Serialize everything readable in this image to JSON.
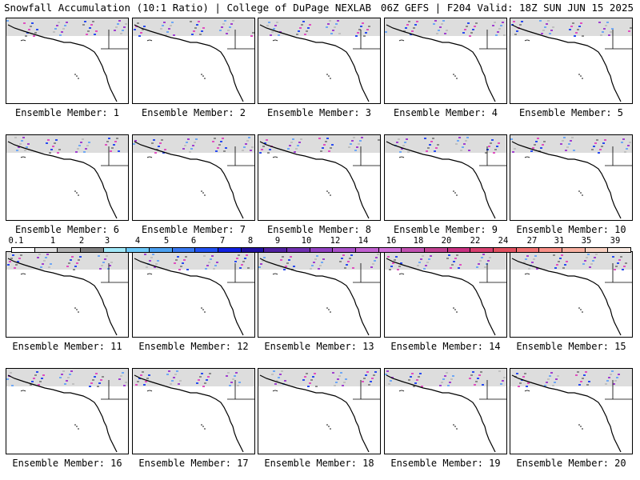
{
  "header": {
    "title_left": "Snowfall Accumulation (10:1 Ratio) | College of DuPage NEXLAB",
    "title_right": "06Z GEFS | F204 Valid: 18Z SUN JUN 15 2025"
  },
  "members": [
    {
      "label": "Ensemble Member: 1"
    },
    {
      "label": "Ensemble Member: 2"
    },
    {
      "label": "Ensemble Member: 3"
    },
    {
      "label": "Ensemble Member: 4"
    },
    {
      "label": "Ensemble Member: 5"
    },
    {
      "label": "Ensemble Member: 6"
    },
    {
      "label": "Ensemble Member: 7"
    },
    {
      "label": "Ensemble Member: 8"
    },
    {
      "label": "Ensemble Member: 9"
    },
    {
      "label": "Ensemble Member: 10"
    },
    {
      "label": "Ensemble Member: 11"
    },
    {
      "label": "Ensemble Member: 12"
    },
    {
      "label": "Ensemble Member: 13"
    },
    {
      "label": "Ensemble Member: 14"
    },
    {
      "label": "Ensemble Member: 15"
    },
    {
      "label": "Ensemble Member: 16"
    },
    {
      "label": "Ensemble Member: 17"
    },
    {
      "label": "Ensemble Member: 18"
    },
    {
      "label": "Ensemble Member: 19"
    },
    {
      "label": "Ensemble Member: 20"
    }
  ],
  "colorbar": {
    "ticks": [
      "0.1",
      "1",
      "2",
      "3",
      "4",
      "5",
      "6",
      "7",
      "8",
      "9",
      "10",
      "12",
      "14",
      "16",
      "18",
      "20",
      "22",
      "24",
      "27",
      "31",
      "35",
      "39"
    ],
    "colors": [
      "#ffffff",
      "#e0e0e0",
      "#b0b0b0",
      "#808080",
      "#a0e8f8",
      "#6cc8f8",
      "#4ca0f0",
      "#3878f0",
      "#2050f0",
      "#1020e0",
      "#2010a0",
      "#5020a0",
      "#7030b0",
      "#9040c0",
      "#a850c8",
      "#c060d0",
      "#d070d8",
      "#c050b0",
      "#c04090",
      "#c83080",
      "#d84070",
      "#e05060",
      "#f07070",
      "#f89088",
      "#f8b0a0",
      "#f8d0c0",
      "#f8e8e0"
    ]
  }
}
